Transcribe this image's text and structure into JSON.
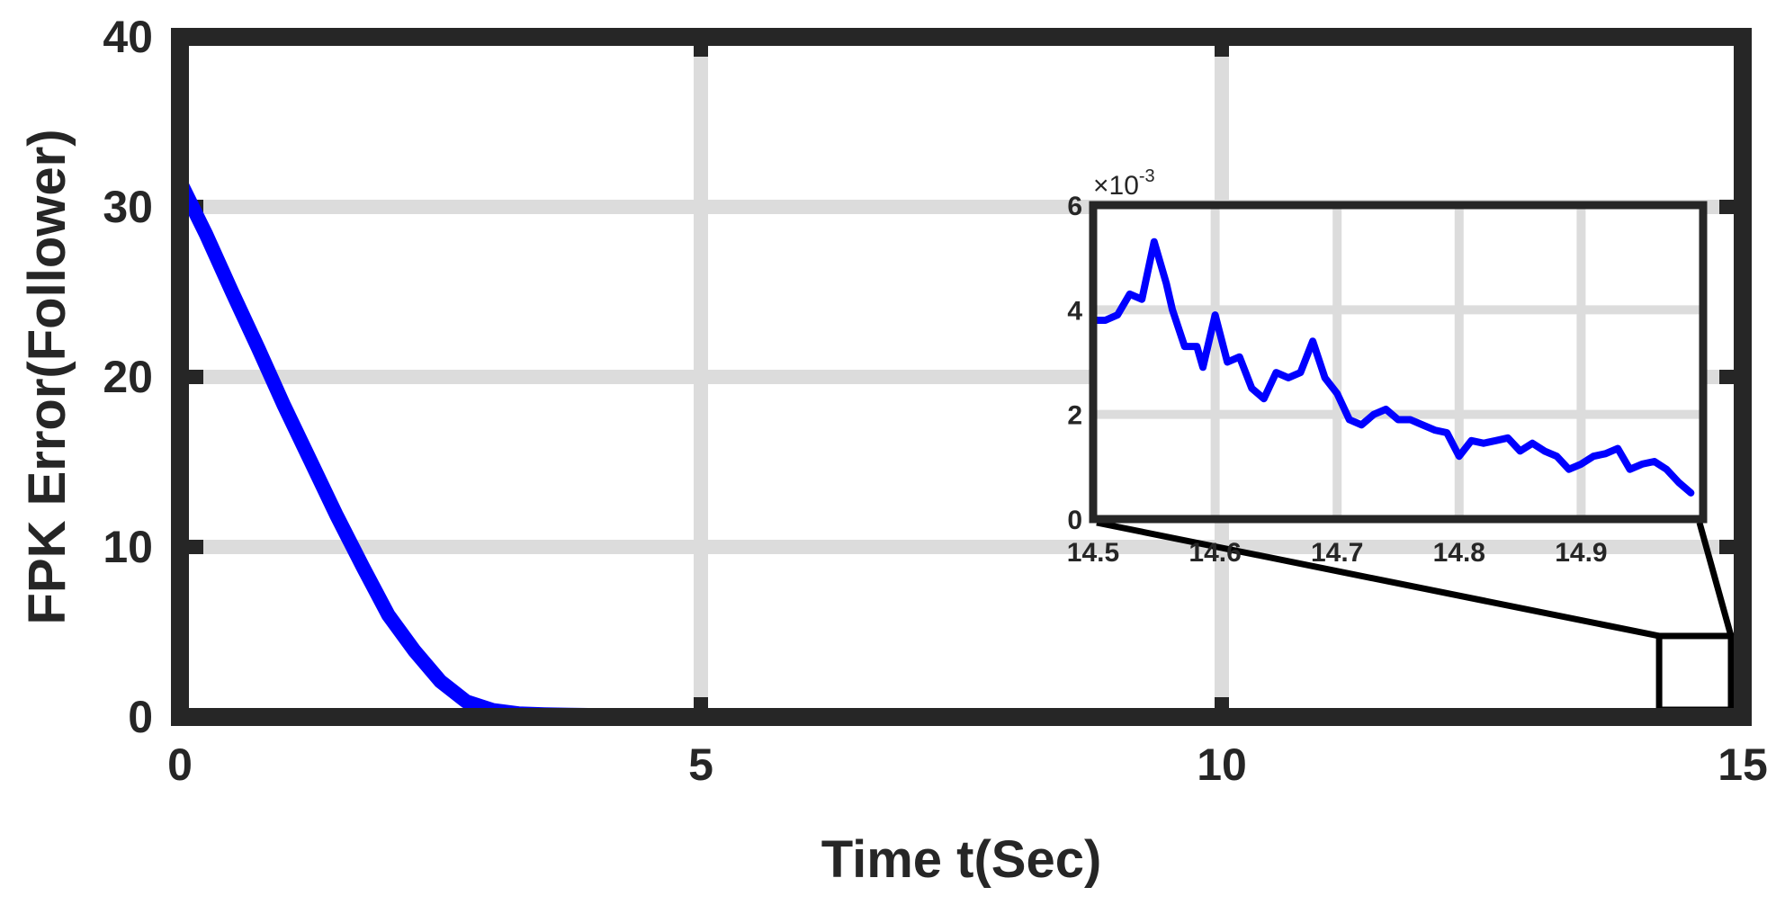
{
  "chart_data": [
    {
      "type": "line",
      "title": "",
      "xlabel": "Time t(Sec)",
      "ylabel": "FPK Error(Follower)",
      "xlim": [
        0,
        15
      ],
      "ylim": [
        0,
        40
      ],
      "xticks": [
        "0",
        "5",
        "10",
        "15"
      ],
      "yticks": [
        "0",
        "10",
        "20",
        "30",
        "40"
      ],
      "grid": true,
      "line_color": "#0000ff",
      "series": [
        {
          "x": [
            0,
            0.25,
            0.5,
            0.75,
            1.0,
            1.25,
            1.5,
            1.75,
            2.0,
            2.25,
            2.5,
            2.75,
            3.0,
            3.25,
            3.5,
            3.75,
            4.0,
            5.0,
            6.0,
            7.0,
            8.0,
            9.0,
            10.0,
            11.0,
            12.0,
            13.0,
            14.0,
            15.0
          ],
          "y": [
            31.5,
            28.4,
            25.0,
            21.7,
            18.3,
            15.1,
            11.9,
            8.9,
            6.0,
            3.9,
            2.1,
            0.9,
            0.4,
            0.2,
            0.15,
            0.12,
            0.1,
            0.1,
            0.1,
            0.1,
            0.1,
            0.1,
            0.1,
            0.1,
            0.1,
            0.1,
            0.1,
            0.1
          ]
        }
      ],
      "zoom_box": {
        "x": [
          14.5,
          15.0
        ],
        "y": [
          0,
          4.5
        ]
      }
    },
    {
      "type": "line",
      "title": "",
      "xlabel": "",
      "ylabel": "",
      "xlim": [
        14.5,
        15.0
      ],
      "ylim": [
        0,
        6
      ],
      "y_exponent": "-3",
      "y_exponent_prefix": "×10",
      "xticks": [
        "14.5",
        "14.6",
        "14.7",
        "14.8",
        "14.9"
      ],
      "yticks": [
        "0",
        "2",
        "4",
        "6"
      ],
      "grid": true,
      "line_color": "#0000ff",
      "series": [
        {
          "x": [
            14.5,
            14.51,
            14.52,
            14.53,
            14.54,
            14.55,
            14.56,
            14.565,
            14.575,
            14.585,
            14.59,
            14.6,
            14.61,
            14.62,
            14.63,
            14.64,
            14.65,
            14.66,
            14.67,
            14.68,
            14.69,
            14.7,
            14.71,
            14.72,
            14.73,
            14.74,
            14.75,
            14.76,
            14.77,
            14.78,
            14.79,
            14.8,
            14.81,
            14.82,
            14.83,
            14.84,
            14.85,
            14.86,
            14.87,
            14.88,
            14.89,
            14.9,
            14.91,
            14.92,
            14.93,
            14.94,
            14.95,
            14.96,
            14.97,
            14.98,
            14.99
          ],
          "y": [
            3.8,
            3.8,
            3.9,
            4.3,
            4.2,
            5.3,
            4.5,
            4.0,
            3.3,
            3.3,
            2.9,
            3.9,
            3.0,
            3.1,
            2.5,
            2.3,
            2.8,
            2.7,
            2.8,
            3.4,
            2.7,
            2.4,
            1.9,
            1.8,
            2.0,
            2.1,
            1.9,
            1.9,
            1.8,
            1.7,
            1.65,
            1.2,
            1.5,
            1.45,
            1.5,
            1.55,
            1.3,
            1.45,
            1.3,
            1.2,
            0.95,
            1.05,
            1.2,
            1.25,
            1.35,
            0.95,
            1.05,
            1.1,
            0.95,
            0.7,
            0.5
          ]
        }
      ]
    }
  ]
}
